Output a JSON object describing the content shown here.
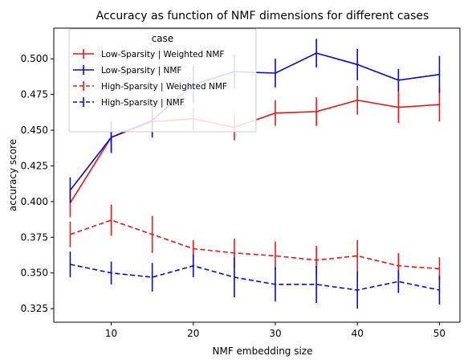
{
  "chart_data": {
    "type": "line",
    "title": "Accuracy as function of NMF dimensions for different cases",
    "xlabel": "NMF embedding size",
    "ylabel": "accuracy score",
    "xlim": [
      3,
      52.5
    ],
    "ylim": [
      0.3155,
      0.5215
    ],
    "xticks": [
      10,
      20,
      30,
      40,
      50
    ],
    "yticks": [
      0.325,
      0.35,
      0.375,
      0.4,
      0.425,
      0.45,
      0.475,
      0.5
    ],
    "ytick_labels": [
      "0.325",
      "0.350",
      "0.375",
      "0.400",
      "0.425",
      "0.450",
      "0.475",
      "0.500"
    ],
    "grid": false,
    "legend": {
      "title": "case",
      "position": "top-left"
    },
    "x": [
      5,
      10,
      15,
      20,
      25,
      30,
      35,
      40,
      45,
      50
    ],
    "series": [
      {
        "name": "Low-Sparsity | Weighted NMF",
        "color": "#e41a1c",
        "style": "solid",
        "values": [
          0.399,
          0.445,
          0.456,
          0.458,
          0.452,
          0.462,
          0.463,
          0.471,
          0.466,
          0.468
        ],
        "errors": [
          0.01,
          0.01,
          0.01,
          0.008,
          0.009,
          0.009,
          0.01,
          0.01,
          0.011,
          0.012
        ]
      },
      {
        "name": "Low-Sparsity | NMF",
        "color": "#0a0ac8",
        "style": "solid",
        "values": [
          0.408,
          0.445,
          0.457,
          0.482,
          0.491,
          0.49,
          0.504,
          0.496,
          0.485,
          0.489
        ],
        "errors": [
          0.009,
          0.011,
          0.012,
          0.013,
          0.012,
          0.01,
          0.01,
          0.011,
          0.008,
          0.013
        ]
      },
      {
        "name": "High-Sparsity | Weighted NMF",
        "color": "#e41a1c",
        "style": "dashed",
        "values": [
          0.377,
          0.387,
          0.377,
          0.367,
          0.364,
          0.362,
          0.359,
          0.362,
          0.355,
          0.353
        ],
        "errors": [
          0.009,
          0.011,
          0.013,
          0.006,
          0.01,
          0.01,
          0.01,
          0.011,
          0.009,
          0.008
        ]
      },
      {
        "name": "High-Sparsity | NMF",
        "color": "#0a0ac8",
        "style": "dashed",
        "values": [
          0.356,
          0.35,
          0.347,
          0.355,
          0.347,
          0.342,
          0.342,
          0.338,
          0.344,
          0.338
        ],
        "errors": [
          0.009,
          0.008,
          0.01,
          0.008,
          0.014,
          0.012,
          0.013,
          0.013,
          0.008,
          0.01
        ]
      }
    ]
  }
}
